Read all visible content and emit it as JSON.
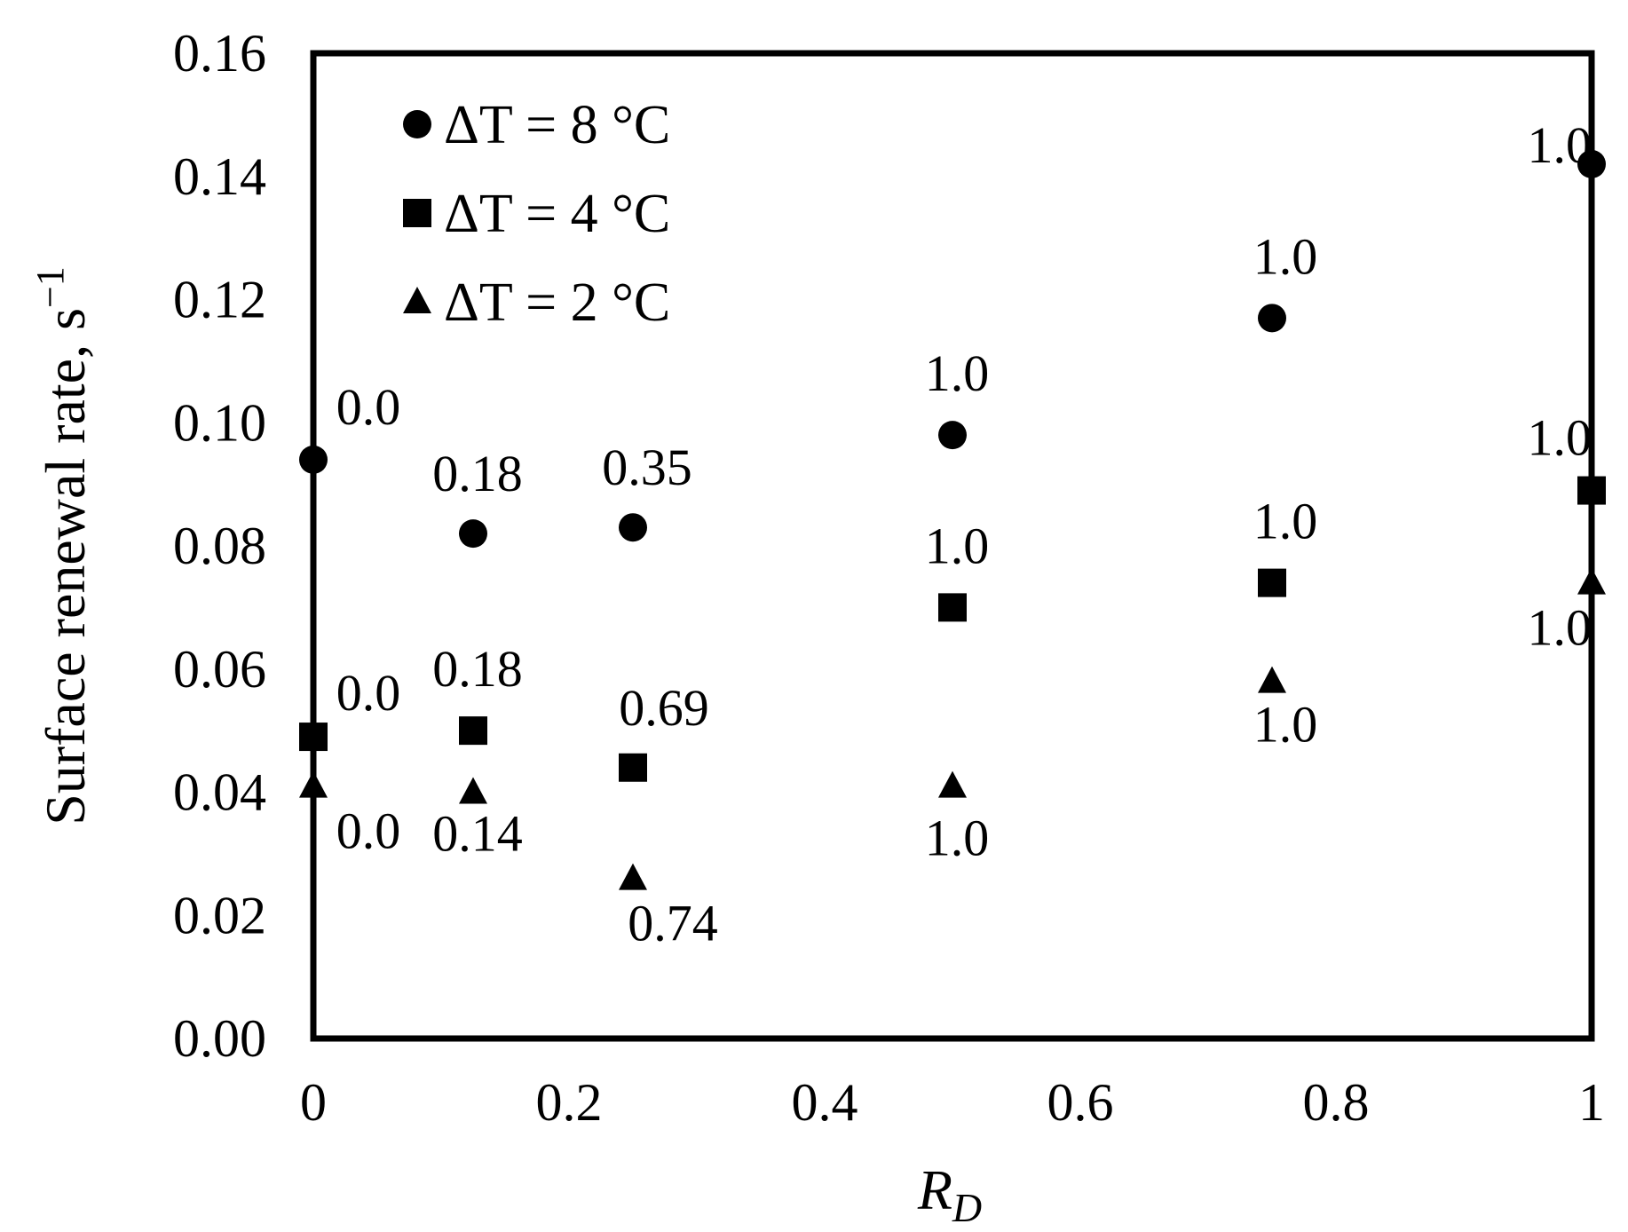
{
  "chart_data": {
    "type": "scatter",
    "title": "",
    "ylabel_text": "Surface renewal rate, s",
    "ylabel_sup": "−1",
    "xlabel_main": "R",
    "xlabel_sub": "D",
    "xlim": [
      0,
      1
    ],
    "ylim": [
      0,
      0.16
    ],
    "xticks": [
      "0",
      "0.2",
      "0.4",
      "0.6",
      "0.8",
      "1"
    ],
    "yticks": [
      "0.00",
      "0.02",
      "0.04",
      "0.06",
      "0.08",
      "0.10",
      "0.12",
      "0.14",
      "0.16"
    ],
    "grid": false,
    "legend_position": "top-left",
    "series": [
      {
        "name": "ΔT = 8 °C",
        "marker": "circle",
        "points": [
          {
            "x": 0.0,
            "y": 0.094,
            "label": "0.0"
          },
          {
            "x": 0.125,
            "y": 0.082,
            "label": "0.18"
          },
          {
            "x": 0.25,
            "y": 0.083,
            "label": "0.35"
          },
          {
            "x": 0.5,
            "y": 0.098,
            "label": "1.0"
          },
          {
            "x": 0.75,
            "y": 0.117,
            "label": "1.0"
          },
          {
            "x": 1.0,
            "y": 0.142,
            "label": "1.0"
          }
        ]
      },
      {
        "name": "ΔT = 4 °C",
        "marker": "square",
        "points": [
          {
            "x": 0.0,
            "y": 0.049,
            "label": "0.0"
          },
          {
            "x": 0.125,
            "y": 0.05,
            "label": "0.18"
          },
          {
            "x": 0.25,
            "y": 0.044,
            "label": "0.69"
          },
          {
            "x": 0.5,
            "y": 0.07,
            "label": "1.0"
          },
          {
            "x": 0.75,
            "y": 0.074,
            "label": "1.0"
          },
          {
            "x": 1.0,
            "y": 0.089,
            "label": "1.0"
          }
        ]
      },
      {
        "name": "ΔT = 2 °C",
        "marker": "triangle",
        "points": [
          {
            "x": 0.0,
            "y": 0.041,
            "label": "0.0"
          },
          {
            "x": 0.125,
            "y": 0.04,
            "label": "0.14"
          },
          {
            "x": 0.25,
            "y": 0.026,
            "label": "0.74"
          },
          {
            "x": 0.5,
            "y": 0.041,
            "label": "1.0"
          },
          {
            "x": 0.75,
            "y": 0.058,
            "label": "1.0"
          },
          {
            "x": 1.0,
            "y": 0.074,
            "label": "1.0"
          }
        ]
      }
    ]
  }
}
